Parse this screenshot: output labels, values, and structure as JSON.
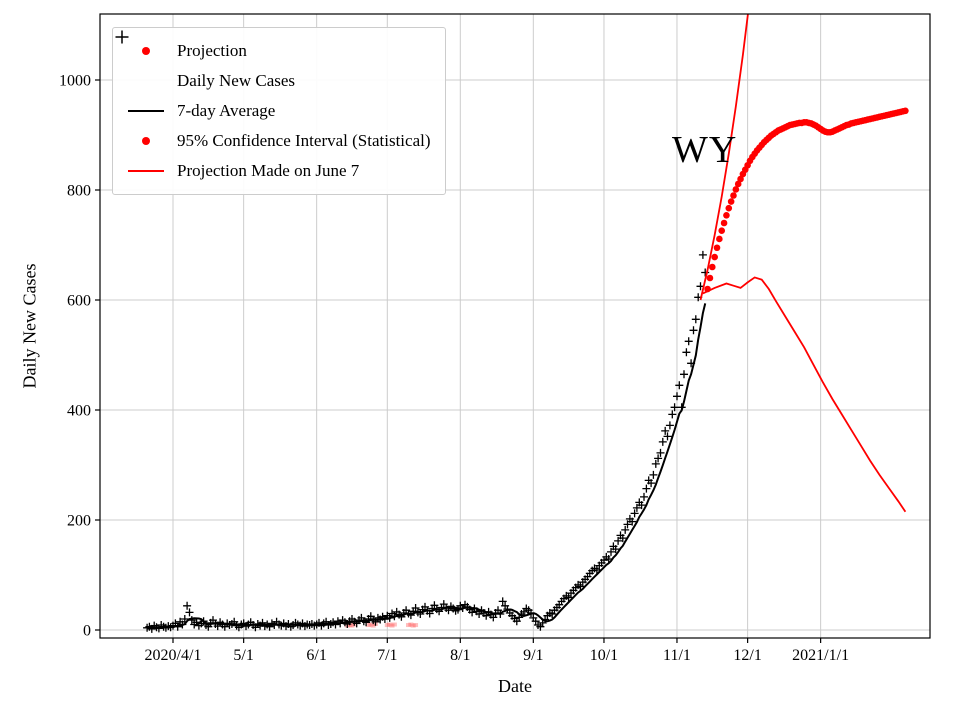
{
  "legend": {
    "items": [
      {
        "label": "Projection",
        "marker": "red-dot"
      },
      {
        "label": "Daily New Cases",
        "marker": "black-plus"
      },
      {
        "label": "7-day Average",
        "marker": "black-line"
      },
      {
        "label": "95% Confidence Interval (Statistical)",
        "marker": "red-dot"
      },
      {
        "label": "Projection Made on June 7",
        "marker": "red-line"
      }
    ]
  },
  "chart_data": {
    "type": "line",
    "title": "",
    "xlabel": "Date",
    "ylabel": "Daily New Cases",
    "annotation": "WY",
    "legend_position": "upper-left",
    "grid": true,
    "ylim": [
      -15,
      1120
    ],
    "y_ticks": [
      0,
      200,
      400,
      600,
      800,
      1000
    ],
    "x_ticks": [
      {
        "day": 0,
        "label": "2020/4/1"
      },
      {
        "day": 30,
        "label": "5/1"
      },
      {
        "day": 61,
        "label": "6/1"
      },
      {
        "day": 91,
        "label": "7/1"
      },
      {
        "day": 122,
        "label": "8/1"
      },
      {
        "day": 153,
        "label": "9/1"
      },
      {
        "day": 183,
        "label": "10/1"
      },
      {
        "day": 214,
        "label": "11/1"
      },
      {
        "day": 244,
        "label": "12/1"
      },
      {
        "day": 275,
        "label": "2021/1/1"
      }
    ],
    "colors": {
      "projection": "#ff0000",
      "daily": "#000000",
      "average": "#000000",
      "june7": "#ff0000",
      "ci_faded": "rgba(255,70,70,0.35)",
      "grid": "#cccccc",
      "axis": "#000000"
    },
    "series": {
      "daily_new_cases": {
        "type": "scatter-plus",
        "start_day": -11,
        "values": [
          4,
          6,
          2,
          8,
          5,
          3,
          9,
          6,
          4,
          7,
          5,
          8,
          12,
          6,
          15,
          10,
          20,
          44,
          32,
          18,
          10,
          14,
          8,
          12,
          16,
          9,
          6,
          13,
          18,
          11,
          7,
          14,
          10,
          6,
          12,
          9,
          11,
          15,
          8,
          5,
          10,
          12,
          7,
          10,
          14,
          9,
          5,
          11,
          8,
          13,
          7,
          10,
          6,
          12,
          9,
          15,
          10,
          8,
          12,
          7,
          11,
          6,
          9,
          13,
          10,
          8,
          12,
          7,
          10,
          9,
          11,
          8,
          10,
          13,
          8,
          12,
          15,
          9,
          11,
          14,
          10,
          16,
          12,
          18,
          14,
          11,
          16,
          20,
          15,
          12,
          18,
          22,
          16,
          14,
          20,
          25,
          18,
          15,
          22,
          19,
          24,
          20,
          26,
          22,
          30,
          25,
          33,
          28,
          24,
          31,
          36,
          30,
          27,
          34,
          40,
          32,
          29,
          37,
          42,
          35,
          30,
          39,
          45,
          38,
          34,
          41,
          47,
          40,
          36,
          43,
          39,
          35,
          37,
          44,
          40,
          46,
          42,
          37,
          32,
          39,
          34,
          29,
          36,
          31,
          26,
          33,
          28,
          23,
          31,
          36,
          29,
          52,
          44,
          38,
          31,
          26,
          21,
          16,
          23,
          29,
          33,
          39,
          36,
          31,
          22,
          16,
          9,
          6,
          13,
          19,
          26,
          31,
          29,
          36,
          41,
          46,
          52,
          57,
          62,
          59,
          67,
          72,
          77,
          82,
          79,
          87,
          92,
          97,
          103,
          108,
          112,
          109,
          117,
          122,
          127,
          133,
          129,
          142,
          152,
          147,
          162,
          172,
          167,
          182,
          192,
          202,
          197,
          212,
          222,
          232,
          227,
          242,
          257,
          272,
          267,
          282,
          302,
          312,
          322,
          342,
          362,
          352,
          372,
          392,
          405,
          425,
          445,
          405,
          465,
          505,
          525,
          485,
          545,
          565,
          605,
          625,
          682,
          650
        ]
      },
      "seven_day_average": {
        "type": "line",
        "derived": "trailing 7-day mean of daily_new_cases"
      },
      "projection": {
        "type": "scatter-dot",
        "start_day": 227,
        "values": [
          620,
          640,
          660,
          678,
          695,
          711,
          726,
          740,
          754,
          767,
          779,
          790,
          801,
          811,
          820,
          829,
          837,
          845,
          853,
          860,
          866,
          872,
          877,
          882,
          887,
          891,
          895,
          899,
          902,
          905,
          908,
          910,
          912,
          914,
          916,
          918,
          919,
          920,
          921,
          922,
          922,
          923,
          923,
          922,
          921,
          919,
          917,
          914,
          911,
          908,
          906,
          905,
          905,
          906,
          908,
          910,
          912,
          914,
          916,
          918,
          919,
          921,
          922,
          923,
          924,
          925,
          926,
          927,
          928,
          929,
          930,
          931,
          932,
          933,
          934,
          935,
          936,
          937,
          938,
          939,
          940,
          941,
          942,
          943,
          944
        ]
      },
      "june7_upper": {
        "type": "line",
        "points": [
          [
            224,
            600
          ],
          [
            227,
            655
          ],
          [
            230,
            718
          ],
          [
            233,
            788
          ],
          [
            236,
            866
          ],
          [
            239,
            952
          ],
          [
            242,
            1046
          ],
          [
            245,
            1150
          ]
        ]
      },
      "june7_projection": {
        "type": "line",
        "points": [
          [
            225,
            612
          ],
          [
            230,
            622
          ],
          [
            235,
            630
          ],
          [
            238,
            626
          ],
          [
            241,
            622
          ],
          [
            244,
            632
          ],
          [
            247,
            641
          ],
          [
            250,
            637
          ],
          [
            253,
            620
          ],
          [
            256,
            598
          ],
          [
            260,
            570
          ],
          [
            264,
            542
          ],
          [
            268,
            514
          ],
          [
            272,
            482
          ],
          [
            276,
            450
          ],
          [
            280,
            420
          ],
          [
            284,
            392
          ],
          [
            288,
            364
          ],
          [
            292,
            336
          ],
          [
            296,
            308
          ],
          [
            300,
            282
          ],
          [
            304,
            258
          ],
          [
            308,
            234
          ],
          [
            311,
            215
          ]
        ]
      },
      "june_ci_marks": {
        "type": "scatter-square-faded",
        "points": [
          [
            74,
            8
          ],
          [
            75,
            9
          ],
          [
            76,
            8
          ],
          [
            77,
            10
          ],
          [
            83,
            9
          ],
          [
            84,
            10
          ],
          [
            85,
            8
          ],
          [
            86,
            11
          ],
          [
            91,
            9
          ],
          [
            92,
            10
          ],
          [
            93,
            8
          ],
          [
            94,
            10
          ],
          [
            100,
            9
          ],
          [
            101,
            10
          ],
          [
            102,
            8
          ],
          [
            103,
            9
          ]
        ]
      }
    }
  }
}
